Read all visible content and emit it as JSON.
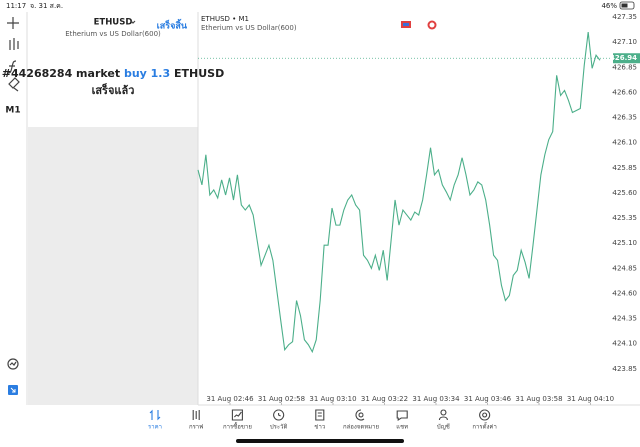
{
  "status_bar": {
    "time": "11:17",
    "date": "จ. 31 ส.ค.",
    "battery": "46%"
  },
  "toolbar": {
    "timeframe": "M1"
  },
  "panel": {
    "symbol": "ETHUSD",
    "description": "Etherium vs US Dollar(600)",
    "done_button": "เสร็จสิ้น",
    "message": {
      "order": "#44268284 market",
      "action": "buy 1.3",
      "symbol": "ETHUSD",
      "status": "เสร็จแล้ว"
    }
  },
  "chart_data": {
    "type": "line",
    "title": "ETHUSD • M1",
    "subtitle": "Etherium vs US Dollar(600)",
    "xtick_labels": [
      "31 Aug 02:46",
      "31 Aug 02:58",
      "31 Aug 03:10",
      "31 Aug 03:22",
      "31 Aug 03:34",
      "31 Aug 03:46",
      "31 Aug 03:58",
      "31 Aug 04:10"
    ],
    "series": [
      {
        "color": "#4caf8a",
        "values": [
          425.83,
          425.68,
          425.98,
          425.58,
          425.63,
          425.55,
          425.73,
          425.58,
          425.75,
          425.53,
          425.78,
          425.48,
          425.43,
          425.48,
          425.38,
          425.13,
          424.88,
          424.98,
          425.08,
          424.93,
          424.63,
          424.33,
          424.04,
          424.09,
          424.12,
          424.53,
          424.38,
          424.14,
          424.09,
          424.02,
          424.14,
          424.53,
          425.08,
          425.08,
          425.45,
          425.28,
          425.28,
          425.43,
          425.53,
          425.58,
          425.48,
          425.43,
          424.98,
          424.93,
          424.85,
          424.98,
          424.83,
          425.03,
          424.73,
          425.13,
          425.53,
          425.28,
          425.43,
          425.38,
          425.33,
          425.41,
          425.38,
          425.53,
          425.78,
          426.05,
          425.78,
          425.83,
          425.68,
          425.61,
          425.53,
          425.68,
          425.78,
          425.95,
          425.78,
          425.58,
          425.63,
          425.71,
          425.68,
          425.53,
          425.28,
          424.98,
          424.93,
          424.68,
          424.53,
          424.58,
          424.78,
          424.83,
          425.03,
          424.91,
          424.75,
          425.08,
          425.43,
          425.78,
          425.98,
          426.13,
          426.21,
          426.77,
          426.57,
          426.62,
          426.52,
          426.4,
          426.42,
          426.44,
          426.87,
          427.2,
          426.84,
          426.97,
          426.92
        ]
      }
    ],
    "ylim": [
      423.6,
      427.4
    ],
    "yticks": [
      427.35,
      {
        "value": 427.1,
        "label": "427.10"
      },
      426.85,
      {
        "value": 426.6,
        "label": "426.60"
      },
      426.35,
      {
        "value": 426.1,
        "label": "426.10"
      },
      425.85,
      {
        "value": 425.6,
        "label": "425.60"
      },
      425.35,
      {
        "value": 425.1,
        "label": "425.10"
      },
      424.85,
      {
        "value": 424.6,
        "label": "424.60"
      },
      424.35,
      {
        "value": 424.1,
        "label": "424.10"
      },
      423.85
    ],
    "current_price": 426.94
  },
  "tab_bar": {
    "tabs": [
      "ราคา",
      "กราฟ",
      "การซื้อขาย",
      "ประวัติ",
      "ข่าว",
      "กล่องจดหมาย",
      "แชท",
      "บัญชี",
      "การตั้งค่า"
    ]
  }
}
